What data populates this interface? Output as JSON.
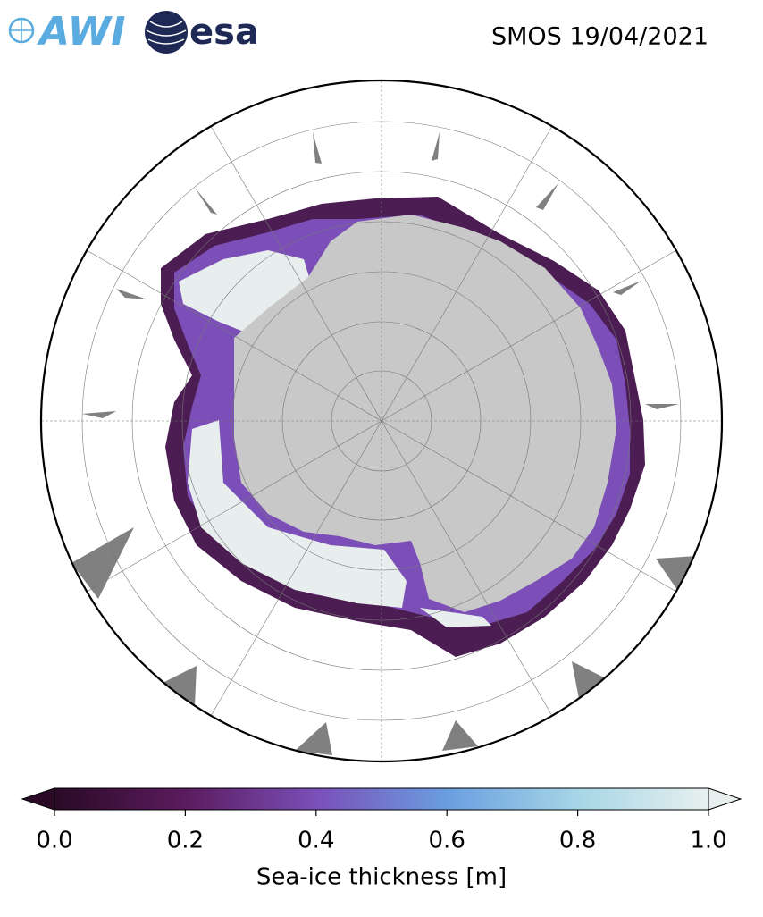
{
  "header": {
    "logos": [
      "AWI",
      "esa"
    ],
    "title": "SMOS 19/04/2021"
  },
  "colorbar": {
    "label": "Sea-ice thickness [m]",
    "lim": [
      0,
      1
    ],
    "ticks": [
      {
        "value": 0,
        "label": "0.0"
      },
      0.2,
      0.4,
      0.6,
      0.8,
      {
        "value": 1,
        "label": "1.0"
      }
    ],
    "colors": [
      "#2a0a26",
      "#5b1b5e",
      "#7a4fb8",
      "#6a9ee0",
      "#a6d6e6",
      "#e8f0ef"
    ]
  }
}
